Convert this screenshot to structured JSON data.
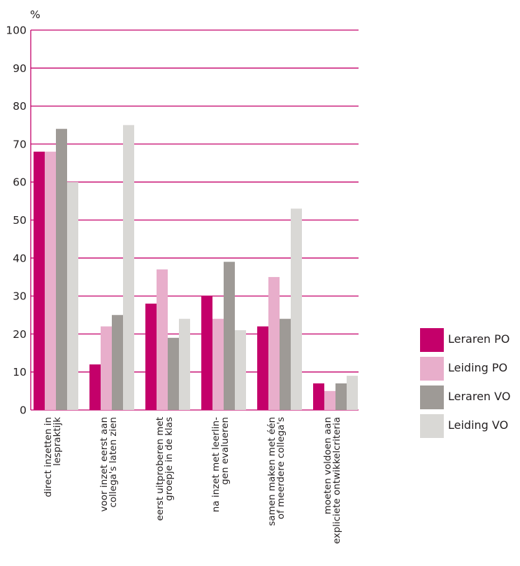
{
  "chart_data": {
    "type": "bar",
    "ylabel": "%",
    "ylim": [
      0,
      100
    ],
    "yticks": [
      0,
      10,
      20,
      30,
      40,
      50,
      60,
      70,
      80,
      90,
      100
    ],
    "grid": true,
    "legend_position": "right",
    "categories": [
      [
        "direct inzetten in",
        "lespraktijk"
      ],
      [
        "voor inzet eerst aan",
        "collega's laten zien"
      ],
      [
        "eerst uitproberen met",
        "groepje in de klas"
      ],
      [
        "na inzet met leerlin-",
        "gen  evalueren"
      ],
      [
        "samen maken met één",
        "of meerdere collega's"
      ],
      [
        "moeten voldoen aan",
        "expliciete ontwikkelcriteria"
      ]
    ],
    "series": [
      {
        "name": "Leraren PO",
        "color": "#c4006a",
        "values": [
          68,
          12,
          28,
          30,
          22,
          7
        ]
      },
      {
        "name": "Leiding PO",
        "color": "#e8aecb",
        "values": [
          68,
          22,
          37,
          24,
          35,
          5
        ]
      },
      {
        "name": "Leraren VO",
        "color": "#9e9a96",
        "values": [
          74,
          25,
          19,
          39,
          24,
          7
        ]
      },
      {
        "name": "Leiding VO",
        "color": "#d9d8d5",
        "values": [
          60,
          75,
          24,
          21,
          53,
          9
        ]
      }
    ]
  }
}
